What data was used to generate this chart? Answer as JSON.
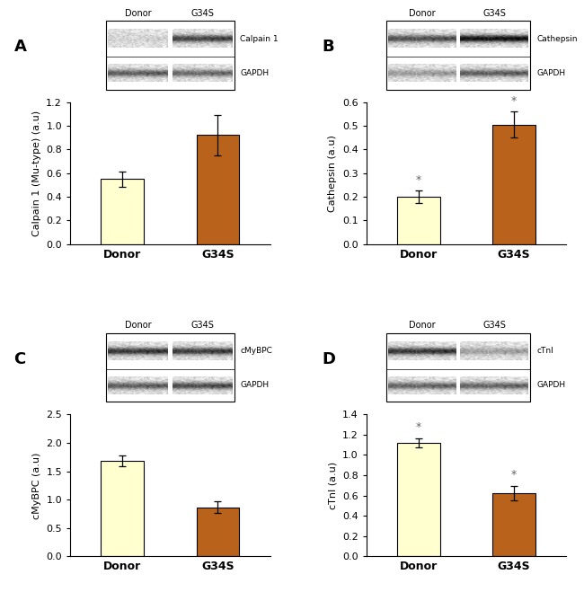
{
  "panels": [
    {
      "label": "A",
      "ylabel": "Calpain 1 (Mu-type) (a.u)",
      "blot_label1": "Calpain 1",
      "blot_label2": "GAPDH",
      "categories": [
        "Donor",
        "G34S"
      ],
      "values": [
        0.55,
        0.92
      ],
      "errors": [
        0.065,
        0.17
      ],
      "bar_colors": [
        "#ffffd0",
        "#b8621b"
      ],
      "ylim": [
        0,
        1.2
      ],
      "yticks": [
        0.0,
        0.2,
        0.4,
        0.6,
        0.8,
        1.0,
        1.2
      ],
      "significance": [
        false,
        false
      ],
      "band1_donor_gray": 0.82,
      "band1_g34s_gray": 0.25,
      "band2_donor_gray": 0.35,
      "band2_g34s_gray": 0.4
    },
    {
      "label": "B",
      "ylabel": "Cathepsin (a.u)",
      "blot_label1": "Cathepsin",
      "blot_label2": "GAPDH",
      "categories": [
        "Donor",
        "G34S"
      ],
      "values": [
        0.2,
        0.505
      ],
      "errors": [
        0.025,
        0.055
      ],
      "bar_colors": [
        "#ffffd0",
        "#b8621b"
      ],
      "ylim": [
        0,
        0.6
      ],
      "yticks": [
        0.0,
        0.1,
        0.2,
        0.3,
        0.4,
        0.5,
        0.6
      ],
      "significance": [
        true,
        true
      ],
      "band1_donor_gray": 0.3,
      "band1_g34s_gray": 0.05,
      "band2_donor_gray": 0.6,
      "band2_g34s_gray": 0.35
    },
    {
      "label": "C",
      "ylabel": "cMyBPC (a.u)",
      "blot_label1": "cMyBPC",
      "blot_label2": "GAPDH",
      "categories": [
        "Donor",
        "G34S"
      ],
      "values": [
        1.68,
        0.865
      ],
      "errors": [
        0.1,
        0.1
      ],
      "bar_colors": [
        "#ffffd0",
        "#b8621b"
      ],
      "ylim": [
        0,
        2.5
      ],
      "yticks": [
        0.0,
        0.5,
        1.0,
        1.5,
        2.0,
        2.5
      ],
      "significance": [
        false,
        false
      ],
      "band1_donor_gray": 0.2,
      "band1_g34s_gray": 0.22,
      "band2_donor_gray": 0.35,
      "band2_g34s_gray": 0.28
    },
    {
      "label": "D",
      "ylabel": "cTnI (a.u)",
      "blot_label1": "cTnI",
      "blot_label2": "GAPDH",
      "categories": [
        "Donor",
        "G34S"
      ],
      "values": [
        1.12,
        0.625
      ],
      "errors": [
        0.045,
        0.07
      ],
      "bar_colors": [
        "#ffffd0",
        "#b8621b"
      ],
      "ylim": [
        0,
        1.4
      ],
      "yticks": [
        0.0,
        0.2,
        0.4,
        0.6,
        0.8,
        1.0,
        1.2,
        1.4
      ],
      "significance": [
        true,
        true
      ],
      "band1_donor_gray": 0.2,
      "band1_g34s_gray": 0.62,
      "band2_donor_gray": 0.38,
      "band2_g34s_gray": 0.38
    }
  ],
  "bar_width": 0.45,
  "background_color": "#ffffff",
  "donor_label": "Donor",
  "g34s_label": "G34S"
}
